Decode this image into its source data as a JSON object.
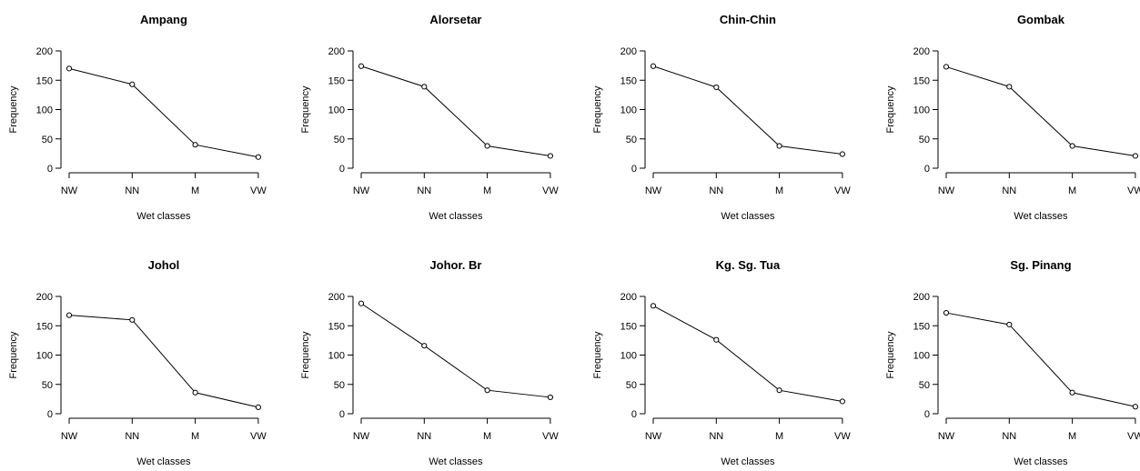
{
  "chart_data": [
    {
      "type": "line",
      "title": "Ampang",
      "xlabel": "Wet classes",
      "ylabel": "Frequency",
      "categories": [
        "NW",
        "NN",
        "M",
        "VW"
      ],
      "values": [
        170,
        143,
        40,
        19
      ],
      "ylim": [
        0,
        200
      ],
      "yticks": [
        0,
        50,
        100,
        150,
        200
      ],
      "grid": false
    },
    {
      "type": "line",
      "title": "Alorsetar",
      "xlabel": "Wet classes",
      "ylabel": "Frequency",
      "categories": [
        "NW",
        "NN",
        "M",
        "VW"
      ],
      "values": [
        174,
        139,
        38,
        21
      ],
      "ylim": [
        0,
        200
      ],
      "yticks": [
        0,
        50,
        100,
        150,
        200
      ],
      "grid": false
    },
    {
      "type": "line",
      "title": "Chin-Chin",
      "xlabel": "Wet classes",
      "ylabel": "Frequency",
      "categories": [
        "NW",
        "NN",
        "M",
        "VW"
      ],
      "values": [
        174,
        138,
        38,
        24
      ],
      "ylim": [
        0,
        200
      ],
      "yticks": [
        0,
        50,
        100,
        150,
        200
      ],
      "grid": false
    },
    {
      "type": "line",
      "title": "Gombak",
      "xlabel": "Wet classes",
      "ylabel": "Frequency",
      "categories": [
        "NW",
        "NN",
        "M",
        "VW"
      ],
      "values": [
        173,
        139,
        38,
        21
      ],
      "ylim": [
        0,
        200
      ],
      "yticks": [
        0,
        50,
        100,
        150,
        200
      ],
      "grid": false
    },
    {
      "type": "line",
      "title": "Johol",
      "xlabel": "Wet classes",
      "ylabel": "Frequency",
      "categories": [
        "NW",
        "NN",
        "M",
        "VW"
      ],
      "values": [
        168,
        160,
        36,
        11
      ],
      "ylim": [
        0,
        200
      ],
      "yticks": [
        0,
        50,
        100,
        150,
        200
      ],
      "grid": false
    },
    {
      "type": "line",
      "title": "Johor. Br",
      "xlabel": "Wet classes",
      "ylabel": "Frequency",
      "categories": [
        "NW",
        "NN",
        "M",
        "VW"
      ],
      "values": [
        188,
        116,
        40,
        28
      ],
      "ylim": [
        0,
        200
      ],
      "yticks": [
        0,
        50,
        100,
        150,
        200
      ],
      "grid": false
    },
    {
      "type": "line",
      "title": "Kg. Sg. Tua",
      "xlabel": "Wet classes",
      "ylabel": "Frequency",
      "categories": [
        "NW",
        "NN",
        "M",
        "VW"
      ],
      "values": [
        184,
        126,
        40,
        21
      ],
      "ylim": [
        0,
        200
      ],
      "yticks": [
        0,
        50,
        100,
        150,
        200
      ],
      "grid": false
    },
    {
      "type": "line",
      "title": "Sg. Pinang",
      "xlabel": "Wet classes",
      "ylabel": "Frequency",
      "categories": [
        "NW",
        "NN",
        "M",
        "VW"
      ],
      "values": [
        172,
        152,
        36,
        12
      ],
      "ylim": [
        0,
        200
      ],
      "yticks": [
        0,
        50,
        100,
        150,
        200
      ],
      "grid": false
    }
  ]
}
